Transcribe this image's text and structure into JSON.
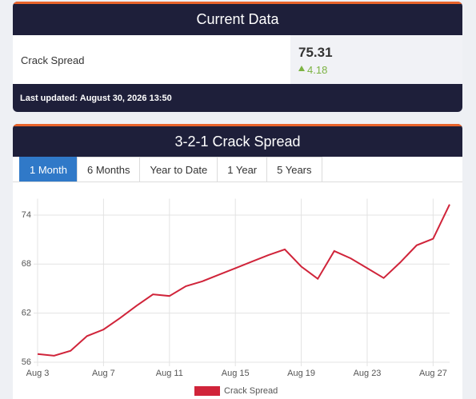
{
  "header": {
    "title": "Current Data"
  },
  "current": {
    "label": "Crack Spread",
    "value": 75.31,
    "change": 4.18
  },
  "footer": "Last updated: August 30, 2026 13:50",
  "chart_panel": {
    "title": "3-2-1 Crack Spread",
    "tabs": [
      "1 Month",
      "6 Months",
      "Year to Date",
      "1 Year",
      "5 Years"
    ],
    "active_tab": 0
  },
  "chart_data": {
    "type": "line",
    "categories": [
      "Aug 3",
      null,
      null,
      null,
      "Aug 7",
      null,
      null,
      null,
      "Aug 11",
      null,
      null,
      null,
      "Aug 15",
      null,
      null,
      null,
      "Aug 19",
      null,
      null,
      null,
      "Aug 23",
      null,
      null,
      null,
      "Aug 27",
      null
    ],
    "series": [
      {
        "name": "Crack Spread",
        "color": "#d0243a",
        "values": [
          57.0,
          56.8,
          57.4,
          59.2,
          60.0,
          61.4,
          62.9,
          64.3,
          64.1,
          65.3,
          65.9,
          66.7,
          67.5,
          68.3,
          69.1,
          69.8,
          67.7,
          66.2,
          69.6,
          68.7,
          67.5,
          66.3,
          68.2,
          70.3,
          71.1,
          75.3
        ]
      }
    ],
    "ylim": [
      56,
      76
    ],
    "yticks": [
      56,
      62,
      68,
      74
    ],
    "grid": true
  }
}
